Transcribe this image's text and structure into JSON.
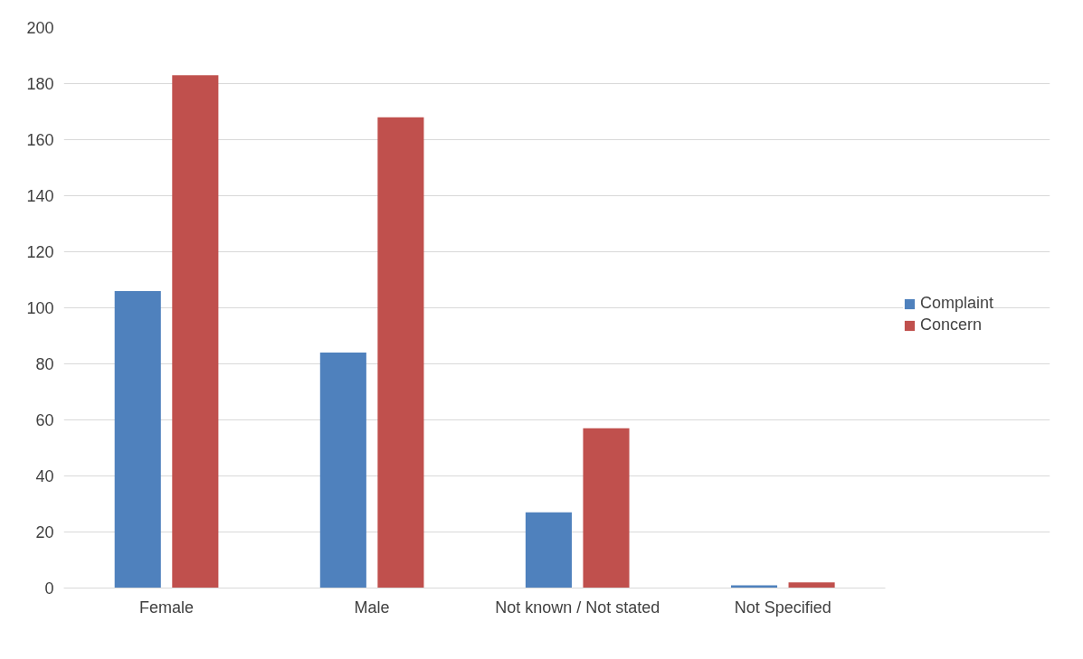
{
  "chart_data": {
    "type": "bar",
    "categories": [
      "Female",
      "Male",
      "Not known / Not stated",
      "Not Specified"
    ],
    "series": [
      {
        "name": "Complaint",
        "color": "#4f81bd",
        "values": [
          106,
          84,
          27,
          1
        ]
      },
      {
        "name": "Concern",
        "color": "#c0504d",
        "values": [
          183,
          168,
          57,
          2
        ]
      }
    ],
    "ylim": [
      0,
      200
    ],
    "yticks": [
      0,
      20,
      40,
      60,
      80,
      100,
      120,
      140,
      160,
      180,
      200
    ],
    "grid": "y",
    "legend": "right"
  }
}
